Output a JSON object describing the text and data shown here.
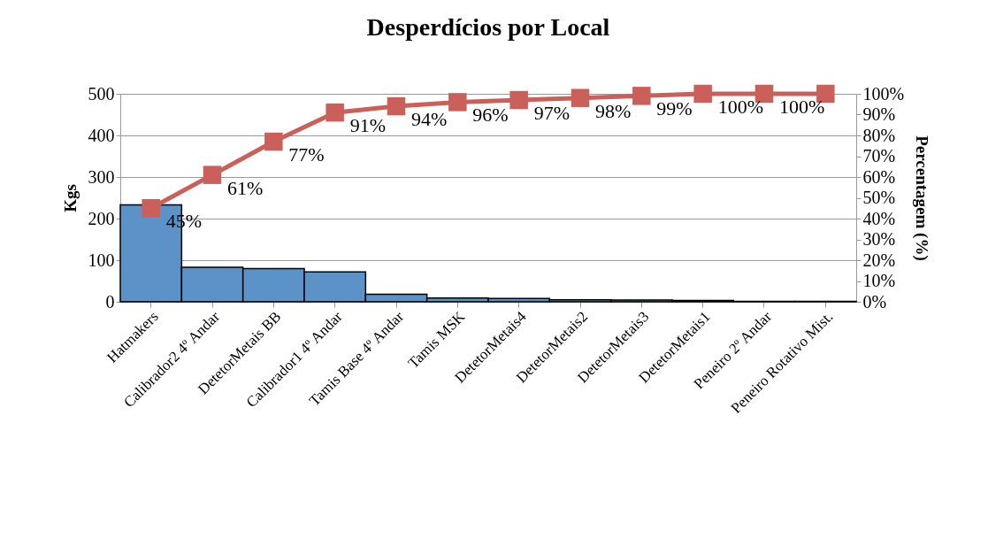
{
  "chart_data": {
    "type": "bar",
    "title": "Desperdícios por Local",
    "ylabel": "Kgs",
    "y2label": "Percentagem (%)",
    "categories": [
      "Hatmakers",
      "Calibrador2 4º Andar",
      "DetetorMetais BB",
      "Calibrador1 4º Andar",
      "Tamis Base 4º Andar",
      "Tamis MSK",
      "DetetorMetais4",
      "DetetorMetais2",
      "DetetorMetais3",
      "DetetorMetais1",
      "Peneiro 2º Andar",
      "Peneiro Rotativo Mist."
    ],
    "series": [
      {
        "color": "#5b93c9",
        "values": [
          233,
          83,
          80,
          72,
          18,
          9,
          8,
          5,
          4,
          3,
          1,
          1
        ]
      },
      {
        "type": "line",
        "axis": "y2",
        "color": "#cb5f5a",
        "marker": "square",
        "line_style": "solid",
        "values": [
          45,
          61,
          77,
          91,
          94,
          96,
          97,
          98,
          99,
          100,
          100,
          100
        ],
        "value_labels": [
          "45%",
          "61%",
          "77%",
          "91%",
          "94%",
          "96%",
          "97%",
          "98%",
          "99%",
          "100%",
          "100%",
          null
        ]
      }
    ],
    "ylim": [
      0,
      500
    ],
    "yticks": [
      0,
      100,
      200,
      300,
      400,
      500
    ],
    "y2lim": [
      0,
      100
    ],
    "y2ticks": [
      {
        "value": 0,
        "label": "0%"
      },
      {
        "value": 10,
        "label": "10%"
      },
      {
        "value": 20,
        "label": "20%"
      },
      {
        "value": 30,
        "label": "30%"
      },
      {
        "value": 40,
        "label": "40%"
      },
      {
        "value": 50,
        "label": "50%"
      },
      {
        "value": 60,
        "label": "60%"
      },
      {
        "value": 70,
        "label": "70%"
      },
      {
        "value": 80,
        "label": "80%"
      },
      {
        "value": 90,
        "label": "90%"
      },
      {
        "value": 100,
        "label": "100%"
      }
    ],
    "grid": "y"
  }
}
